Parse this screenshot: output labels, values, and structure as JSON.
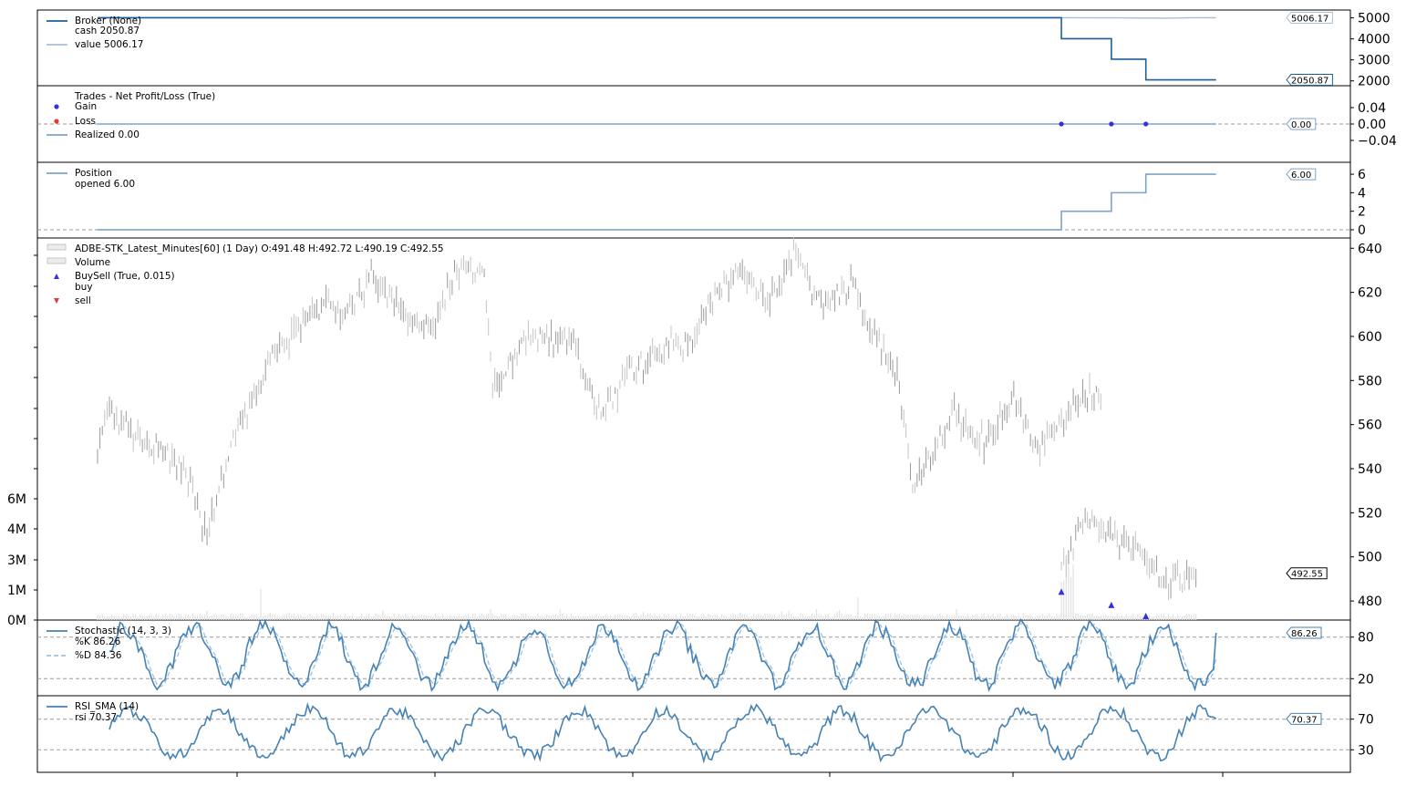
{
  "chart_data": [
    {
      "type": "line",
      "panel": "broker",
      "legend": [
        "Broker (None)",
        "cash 2050.87",
        "value 5006.17"
      ],
      "series": [
        {
          "name": "cash",
          "color": "#1f5f99",
          "last": 2050.87,
          "last_label": "2050.87",
          "steps": [
            [
              0.0,
              5006.17
            ],
            [
              0.81,
              4010
            ],
            [
              0.852,
              3030
            ],
            [
              0.881,
              2050.87
            ],
            [
              0.94,
              2050.87
            ]
          ]
        },
        {
          "name": "value",
          "color": "#a9bfd6",
          "last": 5006.17,
          "last_label": "5006.17"
        }
      ],
      "y_ticks": [
        "5000",
        "4000",
        "3000",
        "2000"
      ],
      "ylim": [
        1900,
        5200
      ]
    },
    {
      "type": "scatter",
      "panel": "trades",
      "legend": [
        "Trades - Net Profit/Loss (True)",
        "Gain",
        "Loss",
        "Realized 0.00"
      ],
      "series": [
        {
          "name": "Gain",
          "color": "#3333dd",
          "x": [
            0.81,
            0.852,
            0.881
          ],
          "y": [
            0,
            0,
            0
          ]
        },
        {
          "name": "Loss",
          "color": "#e03c3c",
          "x": [],
          "y": []
        },
        {
          "name": "Realized",
          "color": "#7ea3c9",
          "last": 0.0,
          "last_label": "0.00"
        }
      ],
      "y_ticks": [
        "0.04",
        "0.00",
        "−0.04"
      ],
      "ylim": [
        -0.06,
        0.06
      ]
    },
    {
      "type": "line",
      "panel": "position",
      "legend": [
        "Position",
        "opened 6.00"
      ],
      "series": [
        {
          "name": "opened",
          "color": "#7ea3c9",
          "last": 6.0,
          "last_label": "6.00",
          "steps": [
            [
              0.0,
              0
            ],
            [
              0.81,
              2
            ],
            [
              0.852,
              4
            ],
            [
              0.881,
              6
            ],
            [
              0.94,
              6
            ]
          ]
        }
      ],
      "y_ticks": [
        "6",
        "4",
        "2",
        "0"
      ],
      "ylim": [
        -0.3,
        6.5
      ]
    },
    {
      "type": "bar",
      "panel": "price",
      "legend": [
        "ADBE-STK_Latest_Minutes[60] (1 Day) O:491.48 H:492.72 L:490.19 C:492.55",
        "Volume",
        "BuySell (True, 0.015)",
        "buy",
        "sell"
      ],
      "last_close": 492.55,
      "last_label": "492.55",
      "y_ticks": [
        "640",
        "620",
        "600",
        "580",
        "560",
        "540",
        "520",
        "500",
        "480"
      ],
      "ylim": [
        473,
        643
      ],
      "volume_ticks": [
        "6M",
        "4M",
        "3M",
        "1M",
        "0M"
      ],
      "volume_max": 6500000,
      "price_anchors": [
        [
          0.0,
          545
        ],
        [
          0.008,
          568
        ],
        [
          0.03,
          555
        ],
        [
          0.055,
          548
        ],
        [
          0.078,
          535
        ],
        [
          0.092,
          510
        ],
        [
          0.1,
          530
        ],
        [
          0.12,
          560
        ],
        [
          0.145,
          590
        ],
        [
          0.165,
          600
        ],
        [
          0.19,
          615
        ],
        [
          0.21,
          610
        ],
        [
          0.23,
          628
        ],
        [
          0.255,
          612
        ],
        [
          0.28,
          602
        ],
        [
          0.3,
          628
        ],
        [
          0.325,
          630
        ],
        [
          0.332,
          578
        ],
        [
          0.36,
          598
        ],
        [
          0.37,
          600
        ],
        [
          0.4,
          598
        ],
        [
          0.41,
          580
        ],
        [
          0.425,
          566
        ],
        [
          0.445,
          582
        ],
        [
          0.48,
          596
        ],
        [
          0.5,
          596
        ],
        [
          0.515,
          618
        ],
        [
          0.54,
          630
        ],
        [
          0.565,
          618
        ],
        [
          0.585,
          636
        ],
        [
          0.61,
          612
        ],
        [
          0.635,
          625
        ],
        [
          0.655,
          598
        ],
        [
          0.672,
          582
        ],
        [
          0.685,
          532
        ],
        [
          0.7,
          545
        ],
        [
          0.72,
          565
        ],
        [
          0.745,
          552
        ],
        [
          0.77,
          572
        ],
        [
          0.79,
          548
        ],
        [
          0.81,
          560
        ],
        [
          0.83,
          575
        ],
        [
          0.845,
          572
        ],
        [
          0.81,
          492
        ],
        [
          0.83,
          520
        ],
        [
          0.855,
          508
        ],
        [
          0.88,
          500
        ],
        [
          0.9,
          488
        ],
        [
          0.925,
          492
        ]
      ],
      "buy_markers": [
        [
          0.81,
          484
        ],
        [
          0.852,
          478
        ],
        [
          0.881,
          473
        ]
      ]
    },
    {
      "type": "line",
      "panel": "stochastic",
      "legend": [
        "Stochastic (14, 3, 3)",
        "%K 86.26",
        "%D 84.36"
      ],
      "series": [
        {
          "name": "%K",
          "color": "#4682b4",
          "last": 86.26,
          "last_label": "86.26"
        },
        {
          "name": "%D",
          "color": "#9ec3e6",
          "last": 84.36
        }
      ],
      "y_ticks": [
        "80",
        "20"
      ],
      "ylim": [
        -2,
        102
      ],
      "hlines": [
        80,
        20
      ]
    },
    {
      "type": "line",
      "panel": "rsi",
      "legend": [
        "RSI_SMA (14)",
        "rsi 70.37"
      ],
      "series": [
        {
          "name": "rsi",
          "color": "#4682b4",
          "last": 70.37,
          "last_label": "70.37"
        }
      ],
      "y_ticks": [
        "70",
        "30"
      ],
      "ylim": [
        3,
        97
      ],
      "hlines": [
        70,
        30
      ]
    }
  ]
}
